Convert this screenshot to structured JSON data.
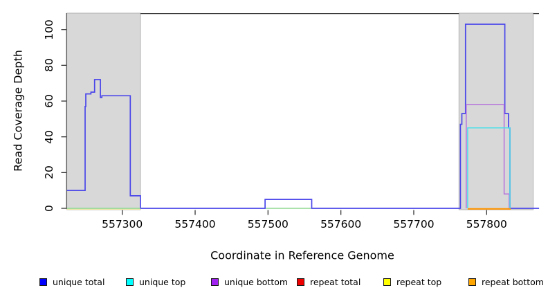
{
  "chart_data": {
    "type": "line",
    "title": "",
    "xlabel": "Coordinate in Reference Genome",
    "ylabel": "Read Coverage Depth",
    "xlim": [
      557224,
      557872
    ],
    "ylim": [
      0,
      109
    ],
    "x_ticks": [
      557300,
      557400,
      557500,
      557600,
      557700,
      557800
    ],
    "y_ticks": [
      0,
      20,
      40,
      60,
      80,
      100
    ],
    "grid": false,
    "legend_position": "bottom",
    "background": "#ffffff",
    "shaded_regions": [
      {
        "name": "repeat-region-left",
        "x0": 557224,
        "x1": 557325,
        "fill": "#d8d8d8"
      },
      {
        "name": "repeat-region-right",
        "x0": 557762,
        "x1": 557864,
        "fill": "#d8d8d8"
      }
    ],
    "legend": [
      {
        "label": "unique total",
        "color": "#0000ff"
      },
      {
        "label": "unique top",
        "color": "#00ffff"
      },
      {
        "label": "unique bottom",
        "color": "#a020f0"
      },
      {
        "label": "repeat total",
        "color": "#ee0000"
      },
      {
        "label": "repeat top",
        "color": "#ffff00"
      },
      {
        "label": "repeat bottom",
        "color": "#ffa500"
      }
    ],
    "series": [
      {
        "name": "repeat top",
        "color": "#efe9a6",
        "width": 1.2,
        "dy": 1.4,
        "points": [
          [
            557224,
            0
          ],
          [
            557325,
            0
          ]
        ]
      },
      {
        "name": "unique total",
        "color": "#4a46ea",
        "width": 1.7,
        "dy": 0,
        "points": [
          [
            557224,
            10
          ],
          [
            557249,
            10
          ],
          [
            557249,
            57
          ],
          [
            557250,
            57
          ],
          [
            557250,
            64
          ],
          [
            557257,
            64
          ],
          [
            557257,
            65
          ],
          [
            557262,
            65
          ],
          [
            557262,
            72
          ],
          [
            557270,
            72
          ],
          [
            557270,
            62
          ],
          [
            557272,
            62
          ],
          [
            557272,
            63
          ],
          [
            557311,
            63
          ],
          [
            557311,
            7
          ],
          [
            557325,
            7
          ],
          [
            557325,
            0
          ],
          [
            557496,
            0
          ],
          [
            557496,
            5
          ],
          [
            557560,
            5
          ],
          [
            557560,
            0
          ],
          [
            557764,
            0
          ],
          [
            557764,
            47
          ],
          [
            557766,
            47
          ],
          [
            557766,
            53
          ],
          [
            557771,
            53
          ],
          [
            557771,
            103
          ],
          [
            557825,
            103
          ],
          [
            557825,
            53
          ],
          [
            557830,
            53
          ],
          [
            557830,
            45
          ],
          [
            557832,
            45
          ],
          [
            557832,
            0
          ],
          [
            557872,
            0
          ]
        ]
      },
      {
        "name": "unique top + repeat top overlap left",
        "color": "#8fd98f",
        "width": 1.4,
        "dy": 0,
        "points": [
          [
            557224,
            0
          ],
          [
            557325,
            0
          ]
        ]
      },
      {
        "name": "unique top + repeat top overlap middle",
        "color": "#8fd98f",
        "width": 1.4,
        "dy": 0,
        "points": [
          [
            557497,
            0
          ],
          [
            557559,
            0
          ]
        ]
      },
      {
        "name": "repeat bottom",
        "color": "#ff9400",
        "width": 2.2,
        "dy": 0.8,
        "points": [
          [
            557774,
            0
          ],
          [
            557833,
            0
          ]
        ]
      },
      {
        "name": "unique bottom",
        "color": "#b570dd",
        "width": 1.5,
        "dy": 0,
        "points": [
          [
            557772,
            0
          ],
          [
            557772,
            58
          ],
          [
            557824,
            58
          ],
          [
            557824,
            8
          ],
          [
            557831,
            8
          ],
          [
            557831,
            0
          ]
        ]
      },
      {
        "name": "unique top",
        "color": "#4ddfe8",
        "width": 1.5,
        "dy": 0,
        "points": [
          [
            557774,
            0
          ],
          [
            557774,
            45
          ],
          [
            557832,
            45
          ],
          [
            557832,
            0
          ]
        ]
      }
    ]
  }
}
